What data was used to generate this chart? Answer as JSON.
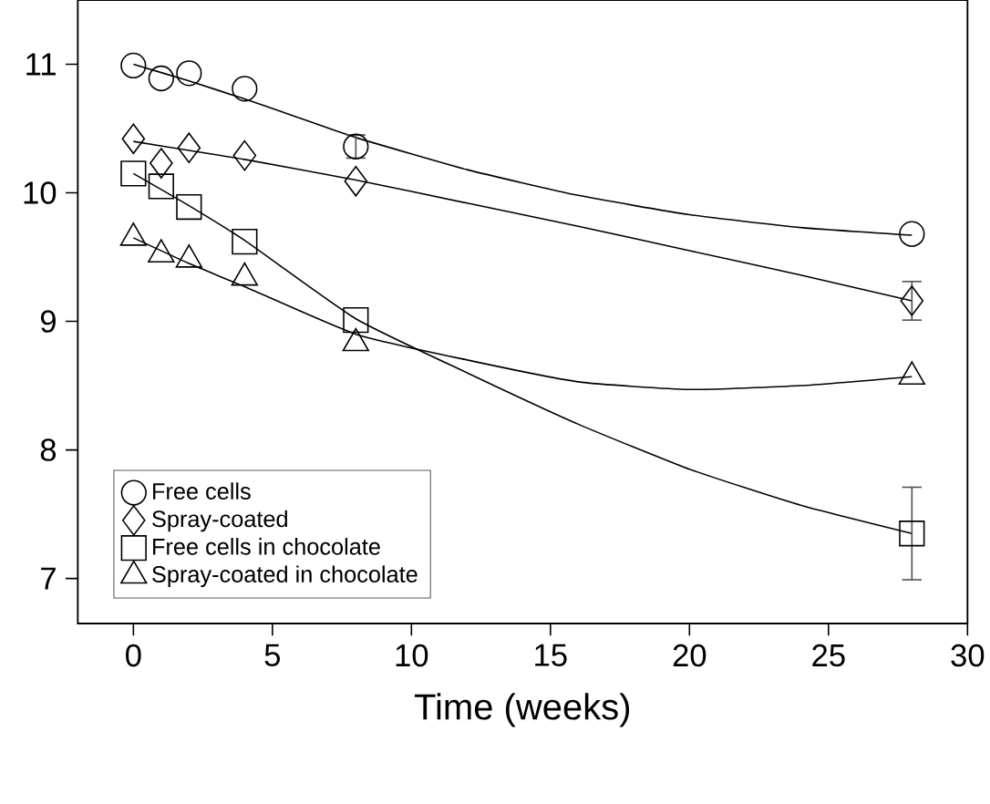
{
  "chart_data": {
    "type": "scatter",
    "xlabel": "Time (weeks)",
    "xlim": [
      -2,
      30
    ],
    "ylim": [
      6.65,
      11.5
    ],
    "xticks": [
      0,
      5,
      10,
      15,
      20,
      25,
      30
    ],
    "yticks": [
      7,
      8,
      9,
      10,
      11
    ],
    "legend": "bottom left",
    "grid": false,
    "series": [
      {
        "name": "Free cells",
        "marker": "circle",
        "color": "#000000",
        "x": [
          0,
          1,
          2,
          4,
          8,
          28
        ],
        "values": [
          10.99,
          10.89,
          10.93,
          10.81,
          10.36,
          9.68
        ],
        "errors": [
          null,
          null,
          null,
          null,
          0.09,
          null
        ]
      },
      {
        "name": "Spray-coated",
        "marker": "diamond",
        "color": "#000000",
        "x": [
          0,
          1,
          2,
          4,
          8,
          28
        ],
        "values": [
          10.42,
          10.23,
          10.35,
          10.29,
          10.09,
          9.16
        ],
        "errors": [
          null,
          null,
          null,
          null,
          null,
          0.15
        ]
      },
      {
        "name": "Free cells in chocolate",
        "marker": "square",
        "color": "#000000",
        "x": [
          0,
          1,
          2,
          4,
          8,
          28
        ],
        "values": [
          10.15,
          10.05,
          9.89,
          9.62,
          9.01,
          7.35
        ],
        "errors": [
          null,
          null,
          null,
          null,
          null,
          0.36
        ]
      },
      {
        "name": "Spray-coated in chocolate",
        "marker": "triangle",
        "color": "#000000",
        "x": [
          0,
          1,
          2,
          4,
          8,
          28
        ],
        "values": [
          9.65,
          9.52,
          9.48,
          9.34,
          8.83,
          8.57
        ],
        "errors": [
          null,
          null,
          null,
          null,
          null,
          null
        ]
      },
      {
        "type": "line",
        "marker": "none",
        "line_style": "solid",
        "color": "#000000",
        "x": [
          0,
          2,
          4,
          6,
          8,
          12,
          16,
          20,
          24,
          28
        ],
        "values": [
          11.0,
          10.87,
          10.73,
          10.58,
          10.43,
          10.18,
          9.98,
          9.83,
          9.73,
          9.67
        ]
      },
      {
        "type": "line",
        "marker": "none",
        "line_style": "solid",
        "color": "#000000",
        "x": [
          0,
          2,
          4,
          8,
          12,
          16,
          20,
          24,
          28
        ],
        "values": [
          10.4,
          10.33,
          10.26,
          10.1,
          9.92,
          9.74,
          9.55,
          9.36,
          9.16
        ]
      },
      {
        "type": "line",
        "marker": "none",
        "line_style": "solid",
        "color": "#000000",
        "x": [
          0,
          2,
          4,
          8,
          12,
          16,
          20,
          24,
          28
        ],
        "values": [
          10.15,
          9.9,
          9.63,
          9.02,
          8.6,
          8.2,
          7.85,
          7.57,
          7.35
        ]
      },
      {
        "type": "line",
        "marker": "none",
        "line_style": "solid",
        "color": "#000000",
        "x": [
          0,
          2,
          4,
          8,
          12,
          16,
          20,
          24,
          28
        ],
        "values": [
          9.65,
          9.45,
          9.27,
          8.9,
          8.7,
          8.53,
          8.47,
          8.5,
          8.57
        ]
      }
    ]
  }
}
